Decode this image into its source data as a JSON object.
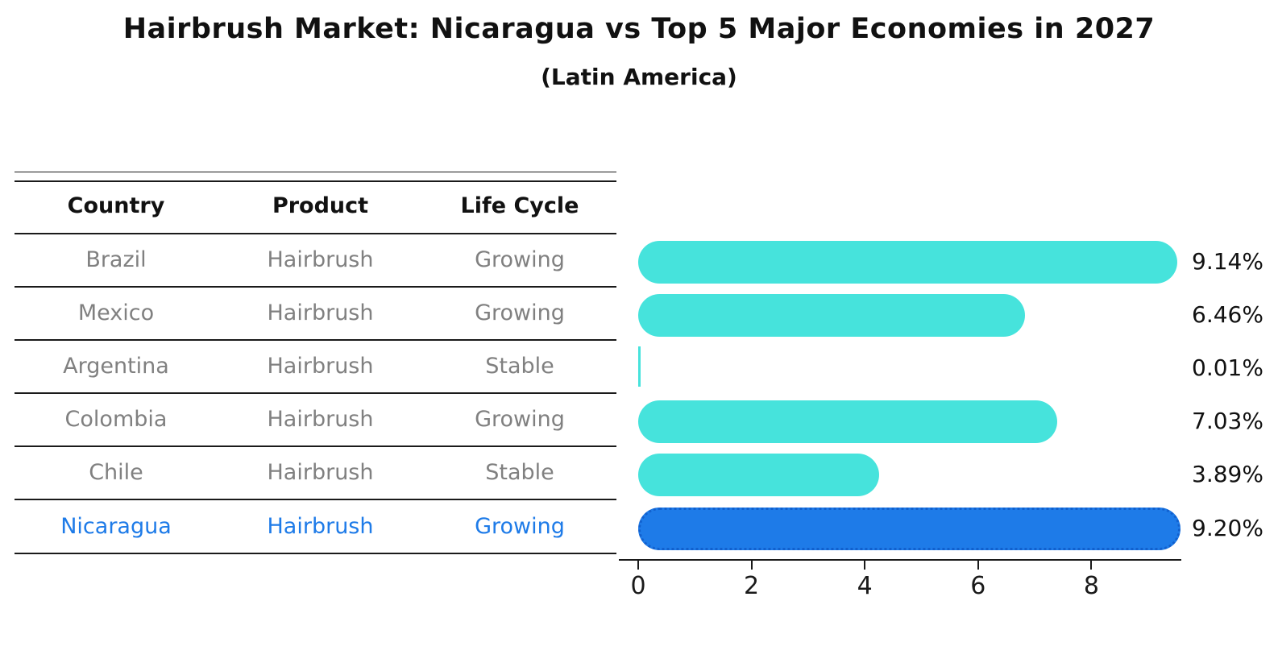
{
  "title": "Hairbrush Market: Nicaragua vs Top 5 Major Economies in 2027",
  "subtitle": "(Latin America)",
  "table": {
    "headers": [
      "Country",
      "Product",
      "Life Cycle"
    ],
    "rows": [
      {
        "country": "Brazil",
        "product": "Hairbrush",
        "life_cycle": "Growing",
        "highlight": false
      },
      {
        "country": "Mexico",
        "product": "Hairbrush",
        "life_cycle": "Growing",
        "highlight": false
      },
      {
        "country": "Argentina",
        "product": "Hairbrush",
        "life_cycle": "Stable",
        "highlight": false
      },
      {
        "country": "Colombia",
        "product": "Hairbrush",
        "life_cycle": "Growing",
        "highlight": false
      },
      {
        "country": "Chile",
        "product": "Hairbrush",
        "life_cycle": "Stable",
        "highlight": false
      },
      {
        "country": "Nicaragua",
        "product": "Hairbrush",
        "life_cycle": "Growing",
        "highlight": true
      }
    ]
  },
  "chart_data": {
    "type": "bar",
    "orientation": "horizontal",
    "title": "Hairbrush Market: Nicaragua vs Top 5 Major Economies in 2027",
    "subtitle": "(Latin America)",
    "categories": [
      "Brazil",
      "Mexico",
      "Argentina",
      "Colombia",
      "Chile",
      "Nicaragua"
    ],
    "values": [
      9.14,
      6.46,
      0.01,
      7.03,
      3.89,
      9.2
    ],
    "value_labels": [
      "9.14%",
      "6.46%",
      "0.01%",
      "7.03%",
      "3.89%",
      "9.20%"
    ],
    "x_ticks": [
      0,
      2,
      4,
      6,
      8
    ],
    "xlim": [
      0,
      9.6
    ],
    "grid": false,
    "legend": null,
    "highlight_index": 5,
    "bar_color": "#46e3dc",
    "highlight_color": "#1e7be8"
  },
  "colors": {
    "bar_turquoise": "#46e3dc",
    "accent_blue": "#1e7be8",
    "table_text_gray": "#808080",
    "line_black": "#1a1a1a"
  }
}
